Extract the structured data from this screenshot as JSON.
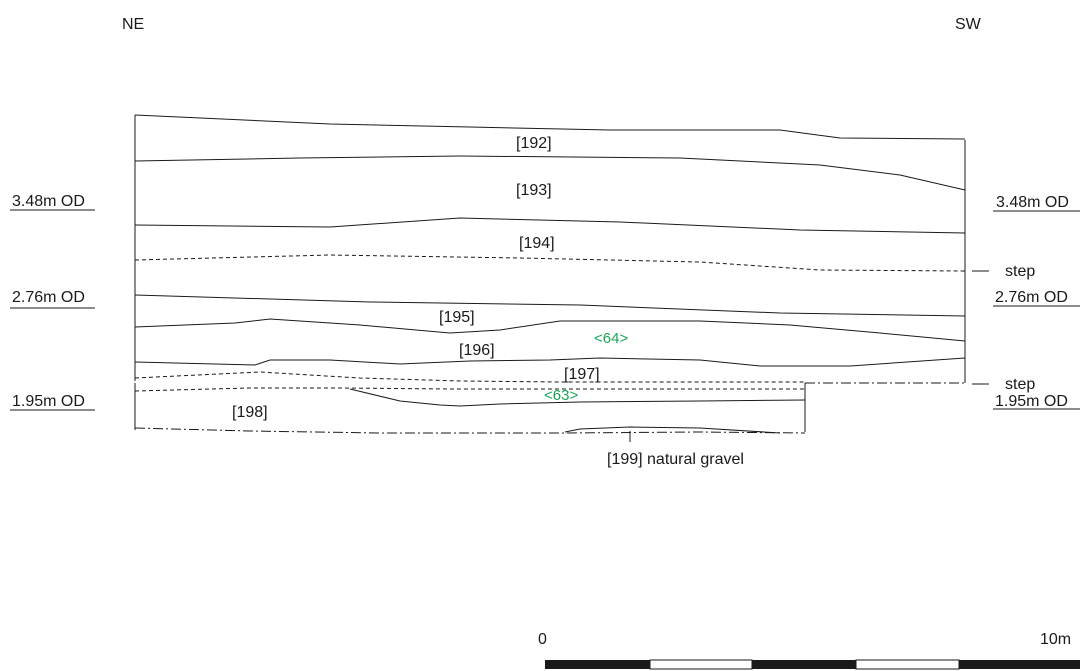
{
  "orientation": {
    "left": "NE",
    "right": "SW"
  },
  "levels": [
    {
      "left": "3.48m OD",
      "right": "3.48m OD"
    },
    {
      "left": "2.76m OD",
      "right": "2.76m OD"
    },
    {
      "left": "1.95m OD",
      "right": "1.95m OD"
    }
  ],
  "step_labels": [
    "step",
    "step"
  ],
  "contexts": [
    "[192]",
    "[193]",
    "[194]",
    "[195]",
    "[196]",
    "[197]",
    "[198]",
    "[199] natural gravel"
  ],
  "samples": [
    "<64>",
    "<63>"
  ],
  "scale_bar": {
    "start_label": "0",
    "end_label": "10m"
  },
  "colors": {
    "ink": "#1a1a1a",
    "sample": "#1aa35a"
  }
}
